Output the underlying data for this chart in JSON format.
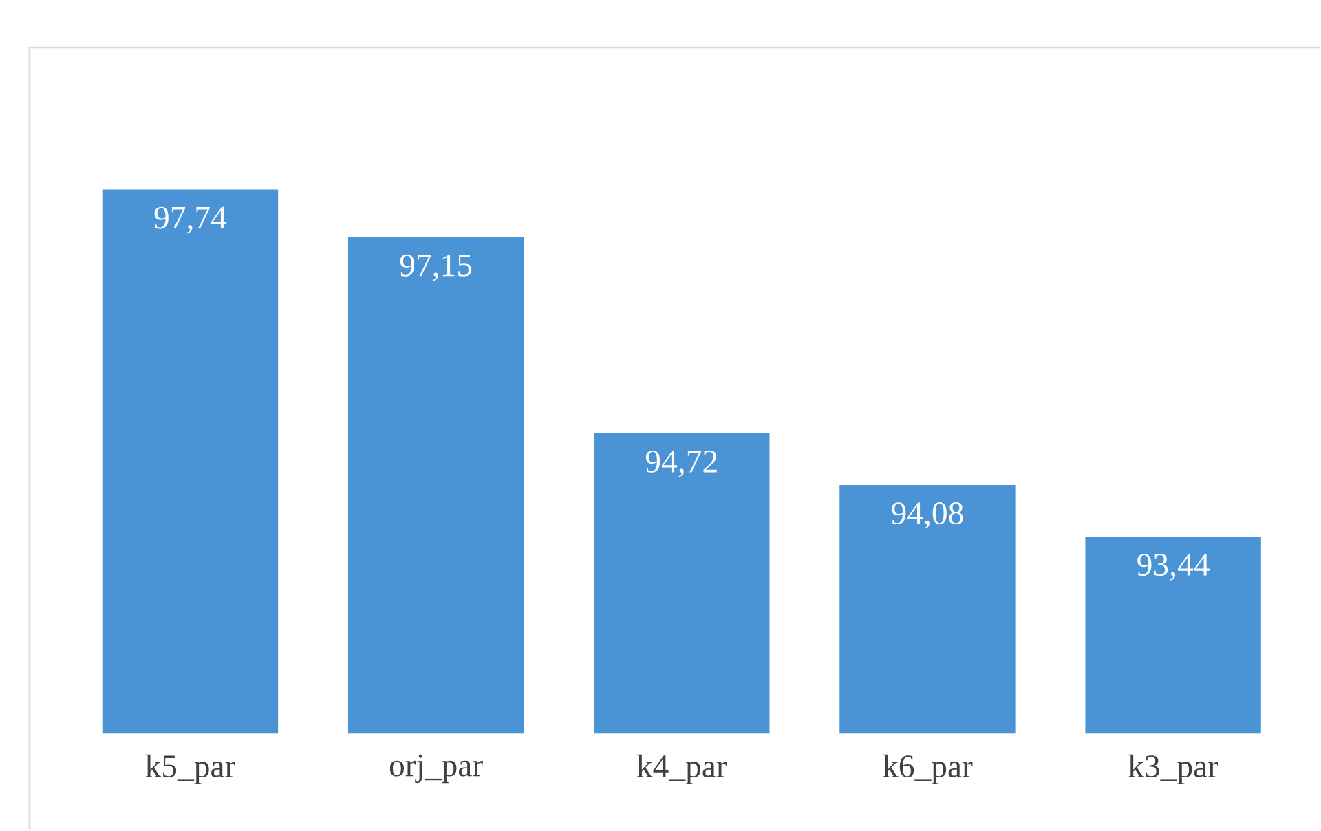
{
  "chart_data": {
    "type": "bar",
    "categories": [
      "k5_par",
      "orj_par",
      "k4_par",
      "k6_par",
      "k3_par"
    ],
    "values": [
      97.74,
      97.15,
      94.72,
      94.08,
      93.44
    ],
    "value_labels": [
      "97,74",
      "97,15",
      "94,72",
      "94,08",
      "93,44"
    ],
    "color": "#4a93d5",
    "ylim": [
      91,
      99.5
    ]
  }
}
